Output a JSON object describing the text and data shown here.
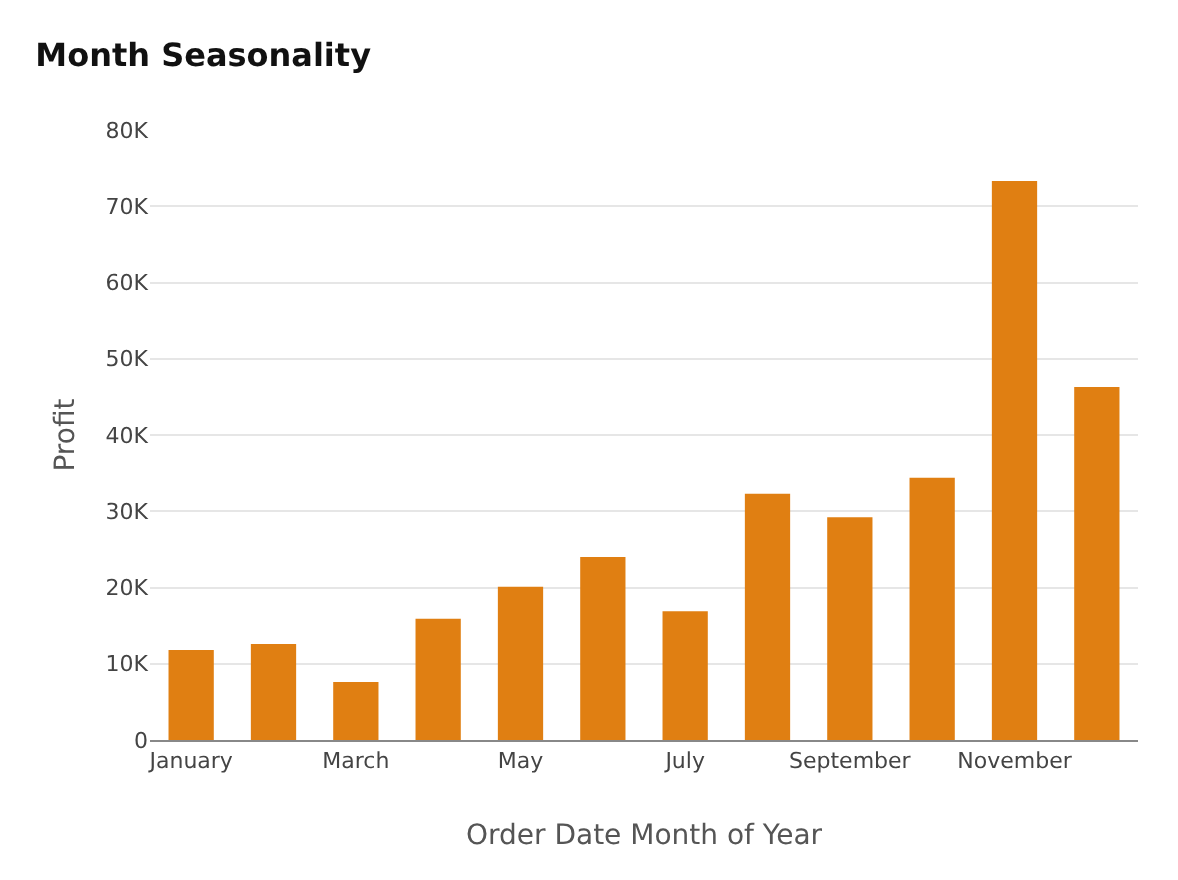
{
  "chart_data": {
    "type": "bar",
    "title": "Month Seasonality",
    "xlabel": "Order Date Month of Year",
    "ylabel": "Profit",
    "categories": [
      "January",
      null,
      "March",
      null,
      "May",
      null,
      "July",
      null,
      "September",
      null,
      "November",
      null
    ],
    "values": [
      11800,
      12600,
      7600,
      15900,
      20100,
      24000,
      16900,
      32300,
      29200,
      34400,
      73300,
      46300
    ],
    "color": "#e07f12",
    "ylim": [
      0,
      80000
    ],
    "yticks": [
      0,
      {
        "value": 10000,
        "label": "10K"
      },
      {
        "value": 20000,
        "label": "20K"
      },
      {
        "value": 30000,
        "label": "30K"
      },
      {
        "value": 40000,
        "label": "40K"
      },
      {
        "value": 50000,
        "label": "50K"
      },
      {
        "value": 60000,
        "label": "60K"
      },
      {
        "value": 70000,
        "label": "70K"
      },
      {
        "value": 80000,
        "label": "80K"
      }
    ],
    "grid": "y"
  }
}
